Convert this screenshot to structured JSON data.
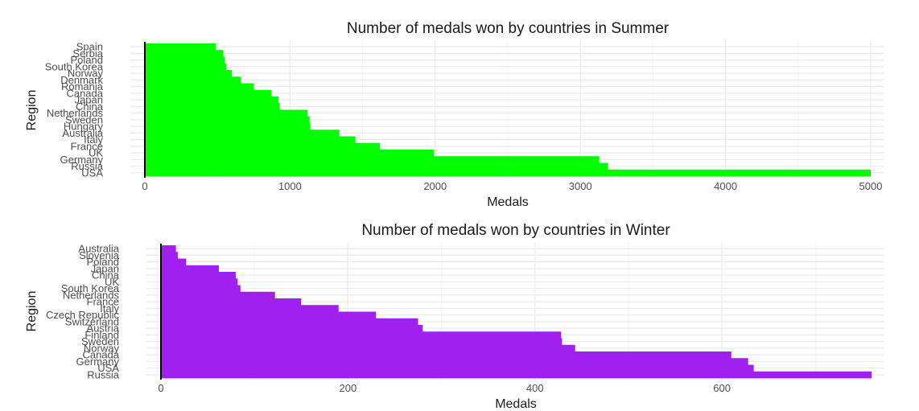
{
  "chart_data": [
    {
      "type": "bar",
      "orientation": "horizontal",
      "title": "Number of medals won by countries in Summer",
      "xlabel": "Medals",
      "ylabel": "Region",
      "bar_color": "#00FF00",
      "xlim": [
        0,
        5000
      ],
      "xticks": [
        0,
        1000,
        2000,
        3000,
        4000,
        5000
      ],
      "grid": true,
      "categories": [
        "Spain",
        "Serbia",
        "Poland",
        "South Korea",
        "Norway",
        "Denmark",
        "Romania",
        "Canada",
        "Japan",
        "China",
        "Netherlands",
        "Sweden",
        "Hungary",
        "Australia",
        "Italy",
        "France",
        "UK",
        "Germany",
        "Russia",
        "USA"
      ],
      "values": [
        490,
        540,
        550,
        560,
        600,
        660,
        750,
        870,
        920,
        930,
        1120,
        1135,
        1140,
        1340,
        1450,
        1620,
        1990,
        3130,
        3190,
        5000
      ]
    },
    {
      "type": "bar",
      "orientation": "horizontal",
      "title": "Number of medals won by countries in Winter",
      "xlabel": "Medals",
      "ylabel": "Region",
      "bar_color": "#A020F0",
      "xlim": [
        0,
        760
      ],
      "xticks": [
        0,
        200,
        400,
        600
      ],
      "grid": true,
      "categories": [
        "Australia",
        "Slovenia",
        "Poland",
        "Japan",
        "China",
        "UK",
        "South Korea",
        "Netherlands",
        "France",
        "Italy",
        "Czech Republic",
        "Switzerland",
        "Austria",
        "Finland",
        "Sweden",
        "Norway",
        "Canada",
        "Germany",
        "USA",
        "Russia"
      ],
      "values": [
        16,
        18,
        27,
        62,
        80,
        82,
        85,
        122,
        150,
        190,
        230,
        275,
        280,
        428,
        429,
        443,
        610,
        628,
        634,
        760
      ]
    }
  ]
}
